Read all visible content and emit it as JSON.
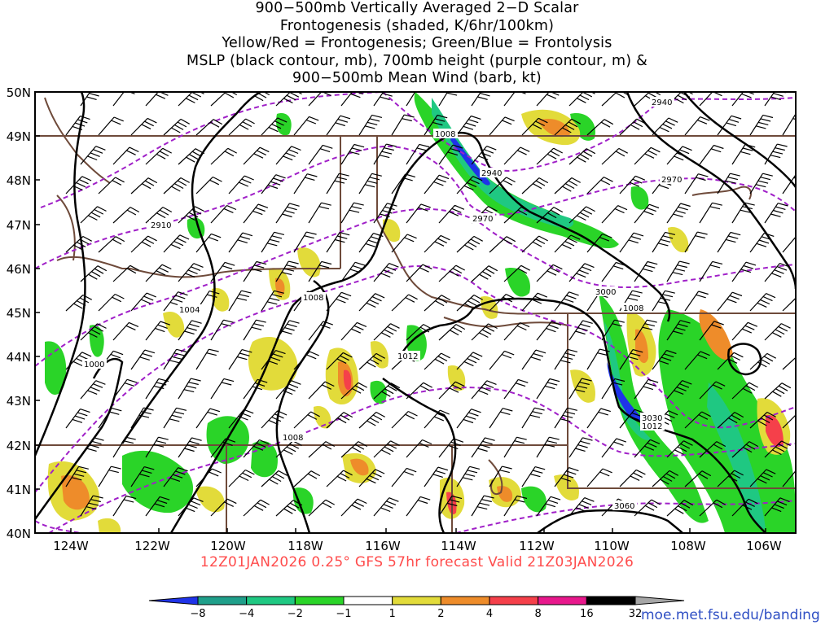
{
  "title_lines": [
    "900−500mb Vertically Averaged 2−D Scalar",
    "Frontogenesis (shaded, K/6hr/100km)",
    "Yellow/Red = Frontogenesis;  Green/Blue = Frontolysis",
    "MSLP (black contour, mb), 700mb height (purple contour, m) &",
    "900−500mb Mean Wind (barb, kt)"
  ],
  "footer": "12Z01JAN2026 0.25° GFS 57hr forecast Valid 21Z03JAN2026",
  "credit": "moe.met.fsu.edu/banding",
  "axes": {
    "lat_labels": [
      "50N",
      "49N",
      "48N",
      "47N",
      "46N",
      "45N",
      "44N",
      "43N",
      "42N",
      "41N",
      "40N"
    ],
    "lon_labels": [
      "124W",
      "122W",
      "120W",
      "118W",
      "116W",
      "114W",
      "112W",
      "110W",
      "108W",
      "106W"
    ]
  },
  "colorbar": {
    "labels": [
      "-8",
      "-4",
      "-2",
      "-1",
      "1",
      "2",
      "4",
      "8",
      "16",
      "32"
    ],
    "colors": [
      "#1f33e8",
      "#1f9f8a",
      "#1fc882",
      "#2ad428",
      "#ffffff",
      "#e2db3a",
      "#ee8c2a",
      "#f5404a",
      "#e8188c",
      "#000000",
      "#a6a6a6"
    ]
  },
  "contour_labels": {
    "mslp": [
      "1008",
      "1008",
      "1004",
      "1000",
      "1012",
      "1008",
      "1008",
      "1012"
    ],
    "height700": [
      "2940",
      "2940",
      "2970",
      "2970",
      "2910",
      "3000",
      "3030",
      "3060"
    ]
  },
  "colors": {
    "mslp": "#000000",
    "height700": "#a020c8",
    "borders": "#6e4a3a",
    "footer": "#ff4c4c",
    "credit": "#2f4fc4"
  }
}
